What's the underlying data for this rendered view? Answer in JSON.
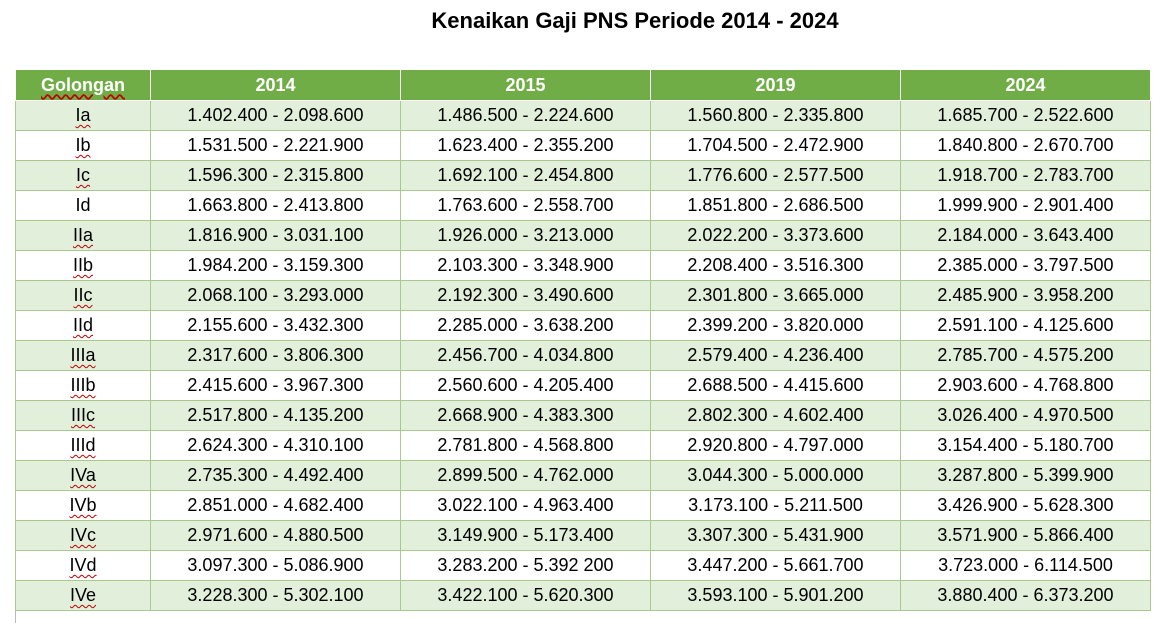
{
  "title": "Kenaikan Gaji PNS Periode 2014 - 2024",
  "table": {
    "headers": [
      "Golongan",
      "2014",
      "2015",
      "2019",
      "2024"
    ],
    "rows": [
      [
        "Ia",
        "1.402.400 - 2.098.600",
        "1.486.500 - 2.224.600",
        "1.560.800 - 2.335.800",
        "1.685.700 - 2.522.600"
      ],
      [
        "Ib",
        "1.531.500 - 2.221.900",
        "1.623.400 - 2.355.200",
        "1.704.500 - 2.472.900",
        "1.840.800 - 2.670.700"
      ],
      [
        "Ic",
        "1.596.300 - 2.315.800",
        "1.692.100 - 2.454.800",
        "1.776.600 - 2.577.500",
        "1.918.700 - 2.783.700"
      ],
      [
        "Id",
        "1.663.800 - 2.413.800",
        "1.763.600 - 2.558.700",
        "1.851.800 - 2.686.500",
        "1.999.900 - 2.901.400"
      ],
      [
        "IIa",
        "1.816.900 - 3.031.100",
        "1.926.000 - 3.213.000",
        "2.022.200 - 3.373.600",
        "2.184.000 - 3.643.400"
      ],
      [
        "IIb",
        "1.984.200 - 3.159.300",
        "2.103.300 - 3.348.900",
        "2.208.400 - 3.516.300",
        "2.385.000 - 3.797.500"
      ],
      [
        "IIc",
        "2.068.100 - 3.293.000",
        "2.192.300 - 3.490.600",
        "2.301.800 - 3.665.000",
        "2.485.900 - 3.958.200"
      ],
      [
        "IId",
        "2.155.600 - 3.432.300",
        "2.285.000 - 3.638.200",
        "2.399.200 - 3.820.000",
        "2.591.100 - 4.125.600"
      ],
      [
        "IIIa",
        "2.317.600 - 3.806.300",
        "2.456.700 - 4.034.800",
        "2.579.400 - 4.236.400",
        "2.785.700 - 4.575.200"
      ],
      [
        "IIIb",
        "2.415.600 - 3.967.300",
        "2.560.600 - 4.205.400",
        "2.688.500 - 4.415.600",
        "2.903.600 - 4.768.800"
      ],
      [
        "IIIc",
        "2.517.800 - 4.135.200",
        "2.668.900 - 4.383.300",
        "2.802.300 - 4.602.400",
        "3.026.400 - 4.970.500"
      ],
      [
        "IIId",
        "2.624.300 - 4.310.100",
        "2.781.800 - 4.568.800",
        "2.920.800 - 4.797.000",
        "3.154.400 - 5.180.700"
      ],
      [
        "IVa",
        "2.735.300 - 4.492.400",
        "2.899.500 - 4.762.000",
        "3.044.300 - 5.000.000",
        "3.287.800 - 5.399.900"
      ],
      [
        "IVb",
        "2.851.000 - 4.682.400",
        "3.022.100 - 4.963.400",
        "3.173.100 - 5.211.500",
        "3.426.900 - 5.628.300"
      ],
      [
        "IVc",
        "2.971.600 - 4.880.500",
        "3.149.900 - 5.173.400",
        "3.307.300 - 5.431.900",
        "3.571.900 - 5.866.400"
      ],
      [
        "IVd",
        "3.097.300 - 5.086.900",
        "3.283.200 - 5.392 200",
        "3.447.200 - 5.661.700",
        "3.723.000 - 6.114.500"
      ],
      [
        "IVe",
        "3.228.300 - 5.302.100",
        "3.422.100 - 5.620.300",
        "3.593.100 - 5.901.200",
        "3.880.400 - 6.373.200"
      ]
    ]
  }
}
